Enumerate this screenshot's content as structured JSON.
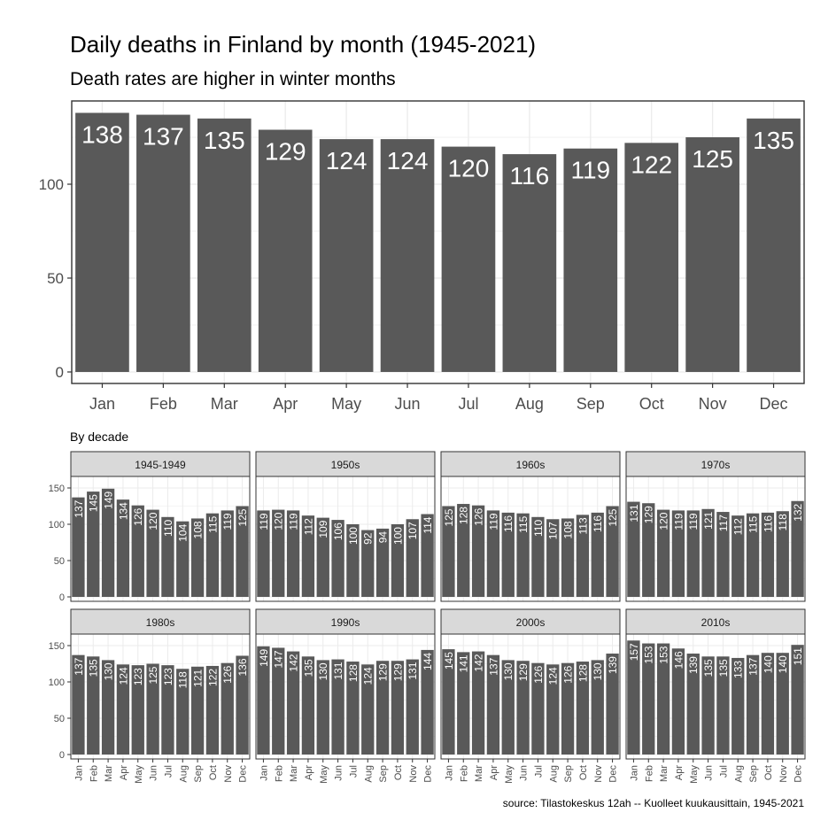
{
  "title": "Daily deaths in Finland by month (1945-2021)",
  "subtitle": "Death rates are higher in winter months",
  "facets_label": "By decade",
  "caption": "source: Tilastokeskus 12ah -- Kuolleet kuukausittain, 1945-2021",
  "colors": {
    "bar": "#595959",
    "strip": "#d9d9d9",
    "grid": "#ebebeb",
    "text": "#000000",
    "axis_text": "#4d4d4d"
  },
  "months": [
    "Jan",
    "Feb",
    "Mar",
    "Apr",
    "May",
    "Jun",
    "Jul",
    "Aug",
    "Sep",
    "Oct",
    "Nov",
    "Dec"
  ],
  "chart_data": [
    {
      "type": "bar",
      "title": "Daily deaths in Finland by month (1945-2021)",
      "subtitle": "Death rates are higher in winter months",
      "categories": [
        "Jan",
        "Feb",
        "Mar",
        "Apr",
        "May",
        "Jun",
        "Jul",
        "Aug",
        "Sep",
        "Oct",
        "Nov",
        "Dec"
      ],
      "values": [
        138,
        137,
        135,
        129,
        124,
        124,
        120,
        116,
        119,
        122,
        125,
        135
      ],
      "yticks": [
        0,
        50,
        100
      ],
      "ylim": [
        0,
        140
      ],
      "grid": true
    },
    {
      "type": "bar",
      "title": "By decade",
      "ylim": [
        0,
        160
      ],
      "yticks": [
        0,
        50,
        100,
        150
      ],
      "grid": true,
      "categories": [
        "Jan",
        "Feb",
        "Mar",
        "Apr",
        "May",
        "Jun",
        "Jul",
        "Aug",
        "Sep",
        "Oct",
        "Nov",
        "Dec"
      ],
      "series": [
        {
          "name": "1945-1949",
          "values": [
            137,
            145,
            149,
            134,
            126,
            120,
            110,
            104,
            108,
            115,
            119,
            125
          ]
        },
        {
          "name": "1950s",
          "values": [
            119,
            120,
            119,
            112,
            109,
            106,
            100,
            92,
            94,
            100,
            107,
            114
          ]
        },
        {
          "name": "1960s",
          "values": [
            125,
            128,
            126,
            119,
            116,
            115,
            110,
            107,
            108,
            113,
            116,
            125
          ]
        },
        {
          "name": "1970s",
          "values": [
            131,
            129,
            120,
            119,
            119,
            121,
            117,
            112,
            115,
            116,
            118,
            132
          ]
        },
        {
          "name": "1980s",
          "values": [
            137,
            135,
            130,
            124,
            123,
            125,
            123,
            118,
            121,
            122,
            126,
            136
          ]
        },
        {
          "name": "1990s",
          "values": [
            149,
            147,
            142,
            135,
            130,
            131,
            128,
            124,
            129,
            129,
            131,
            144
          ]
        },
        {
          "name": "2000s",
          "values": [
            145,
            141,
            142,
            137,
            130,
            129,
            126,
            124,
            126,
            128,
            130,
            139
          ]
        },
        {
          "name": "2010s",
          "values": [
            157,
            153,
            153,
            146,
            139,
            135,
            135,
            133,
            137,
            140,
            140,
            151
          ]
        }
      ]
    }
  ]
}
